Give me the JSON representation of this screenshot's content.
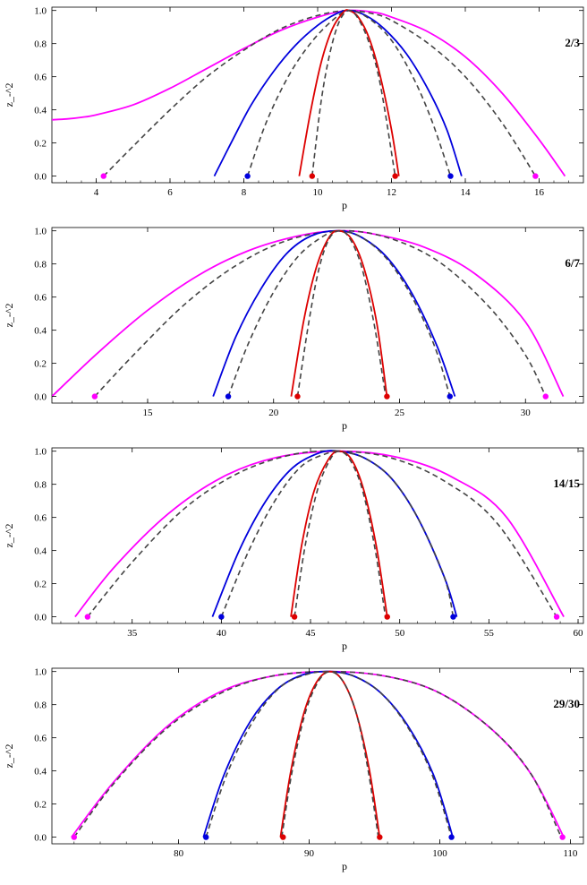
{
  "chart_data": [
    {
      "type": "line",
      "title": "",
      "panel_label": "2/3",
      "xlabel": "p",
      "ylabel": "z_-^2",
      "xlim": [
        2.8,
        17.2
      ],
      "ylim": [
        -0.04,
        1.02
      ],
      "xticks": [
        4,
        6,
        8,
        10,
        12,
        14,
        16
      ],
      "xtick_labels": [
        "4",
        "6",
        "8",
        "10",
        "12",
        "14",
        "16"
      ],
      "yticks": [
        0,
        0.2,
        0.4,
        0.6,
        0.8,
        1
      ],
      "ytick_labels": [
        "0.0",
        "0.2",
        "0.4",
        "0.6",
        "0.8",
        "1.0"
      ],
      "grid": false,
      "series": [
        {
          "color": "#ff00ff",
          "dashed": false,
          "x": [
            2.8,
            3.2,
            3.6,
            4,
            5,
            6,
            7,
            8,
            9,
            10,
            10.8,
            11.5,
            12,
            13,
            14,
            15,
            16,
            16.7
          ],
          "y": [
            0.34,
            0.345,
            0.355,
            0.37,
            0.43,
            0.53,
            0.65,
            0.77,
            0.88,
            0.96,
            1.0,
            0.99,
            0.96,
            0.87,
            0.72,
            0.5,
            0.22,
            0.0
          ]
        },
        {
          "color": "#444444",
          "dashed": true,
          "x": [
            4.2,
            5,
            6,
            7,
            8,
            9,
            10,
            10.8,
            11.5,
            12,
            13,
            14,
            15,
            15.9
          ],
          "y": [
            0.0,
            0.18,
            0.4,
            0.6,
            0.76,
            0.89,
            0.97,
            1.0,
            0.98,
            0.94,
            0.8,
            0.6,
            0.32,
            0.0
          ]
        },
        {
          "color": "#0000dd",
          "dashed": false,
          "x": [
            7.2,
            7.7,
            8.2,
            8.8,
            9.4,
            10,
            10.5,
            10.85,
            11.3,
            11.8,
            12.4,
            13,
            13.5,
            13.9
          ],
          "y": [
            0.0,
            0.22,
            0.43,
            0.63,
            0.79,
            0.91,
            0.98,
            1.0,
            0.97,
            0.89,
            0.74,
            0.52,
            0.28,
            0.0
          ]
        },
        {
          "color": "#444444",
          "dashed": true,
          "x": [
            8.1,
            8.6,
            9.2,
            9.8,
            10.4,
            10.85,
            11.4,
            12,
            12.6,
            13.1,
            13.6
          ],
          "y": [
            0.0,
            0.32,
            0.6,
            0.8,
            0.94,
            1.0,
            0.95,
            0.82,
            0.59,
            0.33,
            0.0
          ]
        },
        {
          "color": "#dd0000",
          "dashed": false,
          "x": [
            9.5,
            9.8,
            10.1,
            10.4,
            10.7,
            10.85,
            11.1,
            11.4,
            11.7,
            12,
            12.2
          ],
          "y": [
            0.0,
            0.38,
            0.69,
            0.89,
            0.99,
            1.0,
            0.96,
            0.83,
            0.6,
            0.28,
            0.0
          ]
        },
        {
          "color": "#444444",
          "dashed": true,
          "x": [
            9.85,
            10.1,
            10.35,
            10.6,
            10.85,
            11.1,
            11.4,
            11.7,
            12.1
          ],
          "y": [
            0.0,
            0.46,
            0.76,
            0.94,
            1.0,
            0.95,
            0.8,
            0.55,
            0.0
          ]
        }
      ],
      "markers": [
        {
          "x": 4.2,
          "y": 0,
          "color": "#ff00ff"
        },
        {
          "x": 15.9,
          "y": 0,
          "color": "#ff00ff"
        },
        {
          "x": 8.1,
          "y": 0,
          "color": "#0000dd"
        },
        {
          "x": 13.6,
          "y": 0,
          "color": "#0000dd"
        },
        {
          "x": 9.85,
          "y": 0,
          "color": "#dd0000"
        },
        {
          "x": 12.1,
          "y": 0,
          "color": "#dd0000"
        }
      ]
    },
    {
      "type": "line",
      "title": "",
      "panel_label": "6/7",
      "xlabel": "p",
      "ylabel": "z_-^2",
      "xlim": [
        11.2,
        32.3
      ],
      "ylim": [
        -0.04,
        1.02
      ],
      "xticks": [
        15,
        20,
        25,
        30
      ],
      "xtick_labels": [
        "15",
        "20",
        "25",
        "30"
      ],
      "yticks": [
        0,
        0.2,
        0.4,
        0.6,
        0.8,
        1
      ],
      "ytick_labels": [
        "0.0",
        "0.2",
        "0.4",
        "0.6",
        "0.8",
        "1.0"
      ],
      "grid": false,
      "series": [
        {
          "color": "#ff00ff",
          "dashed": false,
          "x": [
            11.2,
            13,
            15,
            17,
            19,
            21,
            22.6,
            24,
            26,
            28,
            30,
            31.5
          ],
          "y": [
            0.0,
            0.26,
            0.52,
            0.73,
            0.88,
            0.97,
            1.0,
            0.98,
            0.9,
            0.74,
            0.45,
            0.0
          ]
        },
        {
          "color": "#444444",
          "dashed": true,
          "x": [
            12.9,
            14.5,
            16.5,
            18.5,
            20.5,
            22.6,
            24.5,
            26.5,
            28.5,
            30,
            30.8
          ],
          "y": [
            0.0,
            0.26,
            0.56,
            0.79,
            0.94,
            1.0,
            0.96,
            0.82,
            0.55,
            0.25,
            0.0
          ]
        },
        {
          "color": "#0000dd",
          "dashed": false,
          "x": [
            17.6,
            18.5,
            19.5,
            20.5,
            21.5,
            22.6,
            23.5,
            24.5,
            25.5,
            26.5,
            27.2
          ],
          "y": [
            0.0,
            0.36,
            0.65,
            0.86,
            0.97,
            1.0,
            0.96,
            0.84,
            0.62,
            0.3,
            0.0
          ]
        },
        {
          "color": "#444444",
          "dashed": true,
          "x": [
            18.2,
            19,
            20,
            21,
            22,
            22.6,
            23.5,
            24.5,
            25.5,
            26.4,
            27.0
          ],
          "y": [
            0.0,
            0.32,
            0.63,
            0.85,
            0.97,
            1.0,
            0.96,
            0.83,
            0.6,
            0.3,
            0.0
          ]
        },
        {
          "color": "#dd0000",
          "dashed": false,
          "x": [
            20.7,
            21.2,
            21.7,
            22.2,
            22.6,
            23.1,
            23.6,
            24.1,
            24.5
          ],
          "y": [
            0.0,
            0.46,
            0.78,
            0.96,
            1.0,
            0.95,
            0.77,
            0.44,
            0.0
          ]
        },
        {
          "color": "#444444",
          "dashed": true,
          "x": [
            20.95,
            21.4,
            21.8,
            22.2,
            22.6,
            23,
            23.5,
            24,
            24.45
          ],
          "y": [
            0.0,
            0.45,
            0.77,
            0.95,
            1.0,
            0.96,
            0.78,
            0.43,
            0.0
          ]
        }
      ],
      "markers": [
        {
          "x": 12.9,
          "y": 0,
          "color": "#ff00ff"
        },
        {
          "x": 30.8,
          "y": 0,
          "color": "#ff00ff"
        },
        {
          "x": 18.2,
          "y": 0,
          "color": "#0000dd"
        },
        {
          "x": 27.0,
          "y": 0,
          "color": "#0000dd"
        },
        {
          "x": 20.95,
          "y": 0,
          "color": "#dd0000"
        },
        {
          "x": 24.5,
          "y": 0,
          "color": "#dd0000"
        }
      ]
    },
    {
      "type": "line",
      "title": "",
      "panel_label": "14/15",
      "xlabel": "p",
      "ylabel": "z_-^2",
      "xlim": [
        30.5,
        60.3
      ],
      "ylim": [
        -0.04,
        1.02
      ],
      "xticks": [
        35,
        40,
        45,
        50,
        55,
        60
      ],
      "xtick_labels": [
        "35",
        "40",
        "45",
        "50",
        "55",
        "60"
      ],
      "yticks": [
        0,
        0.2,
        0.4,
        0.6,
        0.8,
        1
      ],
      "ytick_labels": [
        "0.0",
        "0.2",
        "0.4",
        "0.6",
        "0.8",
        "1.0"
      ],
      "grid": false,
      "series": [
        {
          "color": "#ff00ff",
          "dashed": false,
          "x": [
            31.8,
            34,
            37,
            40,
            43,
            46.6,
            50,
            53,
            56,
            59.2
          ],
          "y": [
            0.0,
            0.3,
            0.62,
            0.84,
            0.96,
            1.0,
            0.96,
            0.84,
            0.6,
            0.0
          ]
        },
        {
          "color": "#444444",
          "dashed": true,
          "x": [
            32.5,
            35,
            38,
            41,
            44,
            46.6,
            49.5,
            52.5,
            55.5,
            58.8
          ],
          "y": [
            0.0,
            0.33,
            0.66,
            0.87,
            0.98,
            1.0,
            0.96,
            0.82,
            0.56,
            0.0
          ]
        },
        {
          "color": "#0000dd",
          "dashed": false,
          "x": [
            39.5,
            41,
            42.5,
            44,
            45.5,
            46.6,
            48,
            49.5,
            51,
            52.5,
            53.2
          ],
          "y": [
            0.0,
            0.4,
            0.7,
            0.9,
            0.99,
            1.0,
            0.96,
            0.84,
            0.6,
            0.24,
            0.0
          ]
        },
        {
          "color": "#444444",
          "dashed": true,
          "x": [
            40.0,
            41.5,
            43,
            44.5,
            46,
            46.6,
            48,
            49.5,
            51,
            52.5,
            53.0
          ],
          "y": [
            0.0,
            0.39,
            0.7,
            0.91,
            0.99,
            1.0,
            0.96,
            0.84,
            0.6,
            0.24,
            0.0
          ]
        },
        {
          "color": "#dd0000",
          "dashed": false,
          "x": [
            43.9,
            44.5,
            45.2,
            46,
            46.6,
            47.3,
            48,
            48.7,
            49.3
          ],
          "y": [
            0.0,
            0.43,
            0.76,
            0.95,
            1.0,
            0.95,
            0.76,
            0.42,
            0.0
          ]
        },
        {
          "color": "#444444",
          "dashed": true,
          "x": [
            44.1,
            44.7,
            45.4,
            46.1,
            46.6,
            47.2,
            47.9,
            48.6,
            49.2
          ],
          "y": [
            0.0,
            0.43,
            0.77,
            0.95,
            1.0,
            0.95,
            0.77,
            0.42,
            0.0
          ]
        }
      ],
      "markers": [
        {
          "x": 32.5,
          "y": 0,
          "color": "#ff00ff"
        },
        {
          "x": 58.8,
          "y": 0,
          "color": "#ff00ff"
        },
        {
          "x": 40.0,
          "y": 0,
          "color": "#0000dd"
        },
        {
          "x": 53.0,
          "y": 0,
          "color": "#0000dd"
        },
        {
          "x": 44.1,
          "y": 0,
          "color": "#dd0000"
        },
        {
          "x": 49.3,
          "y": 0,
          "color": "#dd0000"
        }
      ]
    },
    {
      "type": "line",
      "title": "",
      "panel_label": "29/30",
      "xlabel": "p",
      "ylabel": "z_-^2",
      "xlim": [
        70.3,
        111.0
      ],
      "ylim": [
        -0.04,
        1.02
      ],
      "xticks": [
        80,
        90,
        100,
        110
      ],
      "xtick_labels": [
        "80",
        "90",
        "100",
        "110"
      ],
      "yticks": [
        0,
        0.2,
        0.4,
        0.6,
        0.8,
        1
      ],
      "ytick_labels": [
        "0.0",
        "0.2",
        "0.4",
        "0.6",
        "0.8",
        "1.0"
      ],
      "grid": false,
      "series": [
        {
          "color": "#ff00ff",
          "dashed": false,
          "x": [
            71.8,
            75,
            79,
            83,
            87,
            91.6,
            96,
            100,
            104,
            107,
            109.5
          ],
          "y": [
            0.0,
            0.33,
            0.66,
            0.87,
            0.97,
            1.0,
            0.97,
            0.87,
            0.65,
            0.38,
            0.0
          ]
        },
        {
          "color": "#444444",
          "dashed": true,
          "x": [
            72.0,
            75,
            79,
            83,
            87,
            91.6,
            96,
            100,
            104,
            107,
            109.3
          ],
          "y": [
            0.0,
            0.32,
            0.65,
            0.86,
            0.97,
            1.0,
            0.97,
            0.87,
            0.65,
            0.38,
            0.0
          ]
        },
        {
          "color": "#0000dd",
          "dashed": false,
          "x": [
            81.9,
            83.5,
            85.5,
            87.5,
            89.5,
            91.6,
            93.5,
            95.5,
            97.5,
            99.5,
            101.0
          ],
          "y": [
            0.0,
            0.38,
            0.7,
            0.89,
            0.98,
            1.0,
            0.97,
            0.87,
            0.68,
            0.38,
            0.0
          ]
        },
        {
          "color": "#444444",
          "dashed": true,
          "x": [
            82.1,
            83.7,
            85.7,
            87.7,
            89.7,
            91.6,
            93.5,
            95.5,
            97.5,
            99.4,
            100.9
          ],
          "y": [
            0.0,
            0.38,
            0.7,
            0.9,
            0.98,
            1.0,
            0.97,
            0.87,
            0.67,
            0.38,
            0.0
          ]
        },
        {
          "color": "#dd0000",
          "dashed": false,
          "x": [
            87.8,
            88.6,
            89.6,
            90.6,
            91.6,
            92.6,
            93.6,
            94.6,
            95.4
          ],
          "y": [
            0.0,
            0.4,
            0.75,
            0.94,
            1.0,
            0.94,
            0.75,
            0.41,
            0.0
          ]
        },
        {
          "color": "#444444",
          "dashed": true,
          "x": [
            87.9,
            88.7,
            89.7,
            90.7,
            91.6,
            92.6,
            93.6,
            94.5,
            95.3
          ],
          "y": [
            0.0,
            0.4,
            0.75,
            0.94,
            1.0,
            0.94,
            0.75,
            0.41,
            0.0
          ]
        }
      ],
      "markers": [
        {
          "x": 72.0,
          "y": 0,
          "color": "#ff00ff"
        },
        {
          "x": 109.4,
          "y": 0,
          "color": "#ff00ff"
        },
        {
          "x": 82.1,
          "y": 0,
          "color": "#0000dd"
        },
        {
          "x": 100.9,
          "y": 0,
          "color": "#0000dd"
        },
        {
          "x": 88.0,
          "y": 0,
          "color": "#dd0000"
        },
        {
          "x": 95.4,
          "y": 0,
          "color": "#dd0000"
        }
      ]
    }
  ]
}
